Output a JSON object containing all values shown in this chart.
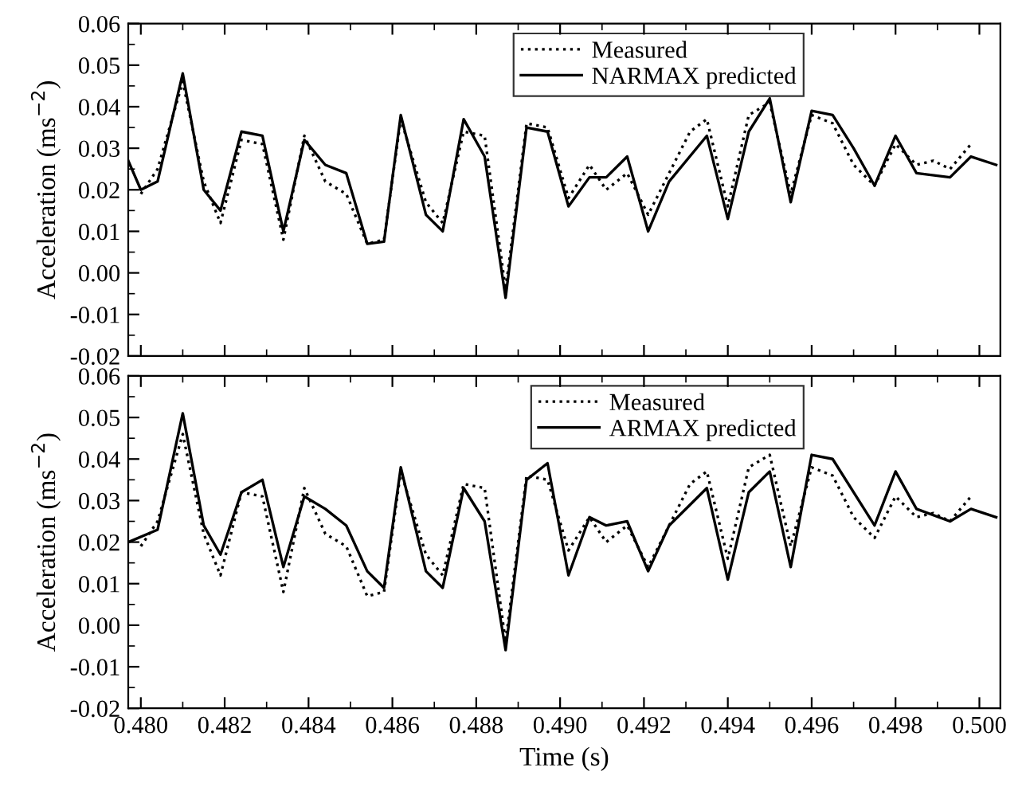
{
  "chart_data": [
    {
      "type": "line",
      "xlim": [
        0.4797,
        0.5005
      ],
      "xticks": [
        0.48,
        0.482,
        0.484,
        0.486,
        0.488,
        0.49,
        0.492,
        0.494,
        0.496,
        0.498,
        0.5
      ],
      "ylim": [
        -0.02,
        0.06
      ],
      "yticks": [
        {
          "value": -0.02,
          "label": "-0.02"
        },
        {
          "value": -0.01,
          "label": "-0.01"
        },
        {
          "value": 0,
          "label": "0.00"
        },
        {
          "value": 0.01,
          "label": "0.01"
        },
        {
          "value": 0.02,
          "label": "0.02"
        },
        {
          "value": 0.03,
          "label": "0.03"
        },
        {
          "value": 0.04,
          "label": "0.04"
        },
        {
          "value": 0.05,
          "label": "0.05"
        },
        {
          "value": 0.06,
          "label": "0.06"
        }
      ],
      "ylabel": "Acceleration (ms$^{−2}$)",
      "tick_labels": "y",
      "grid": false,
      "legend": "top right",
      "marker": "none",
      "series": [
        {
          "name": "Measured",
          "color": "#000000",
          "line_style": "dotted",
          "x": [
            0.48,
            0.4804,
            0.481,
            0.4815,
            0.4819,
            0.4824,
            0.4829,
            0.4834,
            0.4839,
            0.4844,
            0.4849,
            0.4854,
            0.4858,
            0.4862,
            0.4868,
            0.4872,
            0.4877,
            0.4882,
            0.4887,
            0.4892,
            0.4897,
            0.4902,
            0.4907,
            0.4911,
            0.4916,
            0.4921,
            0.4926,
            0.4931,
            0.4935,
            0.494,
            0.4945,
            0.495,
            0.4955,
            0.496,
            0.4965,
            0.497,
            0.4975,
            0.498,
            0.4985,
            0.4989,
            0.4993,
            0.4998
          ],
          "values": [
            0.019,
            0.025,
            0.046,
            0.022,
            0.012,
            0.032,
            0.031,
            0.008,
            0.033,
            0.022,
            0.019,
            0.007,
            0.008,
            0.037,
            0.017,
            0.012,
            0.034,
            0.033,
            -0.004,
            0.036,
            0.035,
            0.018,
            0.026,
            0.02,
            0.024,
            0.014,
            0.024,
            0.034,
            0.037,
            0.016,
            0.038,
            0.041,
            0.019,
            0.038,
            0.036,
            0.026,
            0.021,
            0.031,
            0.026,
            0.027,
            0.025,
            0.031
          ]
        },
        {
          "name": "NARMAX predicted",
          "color": "#000000",
          "line_style": "solid",
          "x": [
            0.4797,
            0.48,
            0.4804,
            0.481,
            0.4815,
            0.4819,
            0.4824,
            0.4829,
            0.4834,
            0.4839,
            0.4844,
            0.4849,
            0.4854,
            0.4858,
            0.4862,
            0.4868,
            0.4872,
            0.4877,
            0.4882,
            0.4887,
            0.4892,
            0.4897,
            0.4902,
            0.4907,
            0.4911,
            0.4916,
            0.4921,
            0.4926,
            0.4935,
            0.494,
            0.4945,
            0.495,
            0.4955,
            0.496,
            0.4965,
            0.497,
            0.4975,
            0.498,
            0.4985,
            0.4993,
            0.4998,
            0.5004
          ],
          "values": [
            0.027,
            0.02,
            0.022,
            0.048,
            0.02,
            0.015,
            0.034,
            0.033,
            0.01,
            0.032,
            0.026,
            0.024,
            0.007,
            0.0075,
            0.038,
            0.014,
            0.01,
            0.037,
            0.028,
            -0.006,
            0.035,
            0.034,
            0.016,
            0.023,
            0.023,
            0.028,
            0.01,
            0.022,
            0.033,
            0.013,
            0.034,
            0.042,
            0.017,
            0.039,
            0.038,
            0.03,
            0.021,
            0.033,
            0.024,
            0.023,
            0.028,
            0.026
          ]
        }
      ]
    },
    {
      "type": "line",
      "xlim": [
        0.4797,
        0.5005
      ],
      "xticks": [
        {
          "value": 0.48,
          "label": "0.480"
        },
        {
          "value": 0.482,
          "label": "0.482"
        },
        {
          "value": 0.484,
          "label": "0.484"
        },
        {
          "value": 0.486,
          "label": "0.486"
        },
        {
          "value": 0.488,
          "label": "0.488"
        },
        {
          "value": 0.49,
          "label": "0.490"
        },
        {
          "value": 0.492,
          "label": "0.492"
        },
        {
          "value": 0.494,
          "label": "0.494"
        },
        {
          "value": 0.496,
          "label": "0.496"
        },
        {
          "value": 0.498,
          "label": "0.498"
        },
        {
          "value": 0.5,
          "label": "0.500"
        }
      ],
      "ylim": [
        -0.02,
        0.06
      ],
      "yticks": [
        {
          "value": -0.02,
          "label": "-0.02"
        },
        {
          "value": -0.01,
          "label": "-0.01"
        },
        {
          "value": 0,
          "label": "0.00"
        },
        {
          "value": 0.01,
          "label": "0.01"
        },
        {
          "value": 0.02,
          "label": "0.02"
        },
        {
          "value": 0.03,
          "label": "0.03"
        },
        {
          "value": 0.04,
          "label": "0.04"
        },
        {
          "value": 0.05,
          "label": "0.05"
        },
        {
          "value": 0.06,
          "label": "0.06"
        }
      ],
      "ylabel": "Acceleration (ms$^{−2}$)",
      "xlabel": "Time (s)",
      "grid": false,
      "legend": "top right",
      "marker": "none",
      "series": [
        {
          "name": "Measured",
          "color": "#000000",
          "line_style": "dotted",
          "x": [
            0.48,
            0.4804,
            0.481,
            0.4815,
            0.4819,
            0.4824,
            0.4829,
            0.4834,
            0.4839,
            0.4844,
            0.4849,
            0.4854,
            0.4858,
            0.4862,
            0.4868,
            0.4872,
            0.4877,
            0.4882,
            0.4887,
            0.4892,
            0.4897,
            0.4902,
            0.4907,
            0.4911,
            0.4916,
            0.4921,
            0.4926,
            0.4931,
            0.4935,
            0.494,
            0.4945,
            0.495,
            0.4955,
            0.496,
            0.4965,
            0.497,
            0.4975,
            0.498,
            0.4985,
            0.4989,
            0.4993,
            0.4998
          ],
          "values": [
            0.019,
            0.025,
            0.046,
            0.022,
            0.012,
            0.032,
            0.031,
            0.008,
            0.033,
            0.022,
            0.019,
            0.007,
            0.008,
            0.037,
            0.017,
            0.012,
            0.034,
            0.033,
            -0.004,
            0.036,
            0.035,
            0.018,
            0.026,
            0.02,
            0.024,
            0.014,
            0.024,
            0.034,
            0.037,
            0.016,
            0.038,
            0.041,
            0.019,
            0.038,
            0.036,
            0.026,
            0.021,
            0.031,
            0.026,
            0.027,
            0.025,
            0.031
          ]
        },
        {
          "name": "ARMAX predicted",
          "color": "#000000",
          "line_style": "solid",
          "x": [
            0.4797,
            0.4804,
            0.481,
            0.4815,
            0.4819,
            0.4824,
            0.4829,
            0.4834,
            0.4839,
            0.4844,
            0.4849,
            0.4854,
            0.4858,
            0.4862,
            0.4868,
            0.4872,
            0.4877,
            0.4882,
            0.4887,
            0.4892,
            0.4897,
            0.4902,
            0.4907,
            0.4911,
            0.4916,
            0.4921,
            0.4926,
            0.4935,
            0.494,
            0.4945,
            0.495,
            0.4955,
            0.496,
            0.4965,
            0.4975,
            0.498,
            0.4985,
            0.4993,
            0.4998,
            0.5004
          ],
          "values": [
            0.02,
            0.023,
            0.051,
            0.024,
            0.017,
            0.032,
            0.035,
            0.014,
            0.031,
            0.028,
            0.024,
            0.013,
            0.009,
            0.038,
            0.013,
            0.009,
            0.033,
            0.025,
            -0.006,
            0.035,
            0.039,
            0.012,
            0.026,
            0.024,
            0.025,
            0.013,
            0.024,
            0.033,
            0.011,
            0.032,
            0.037,
            0.014,
            0.041,
            0.04,
            0.024,
            0.037,
            0.028,
            0.025,
            0.028,
            0.026
          ]
        }
      ]
    }
  ]
}
